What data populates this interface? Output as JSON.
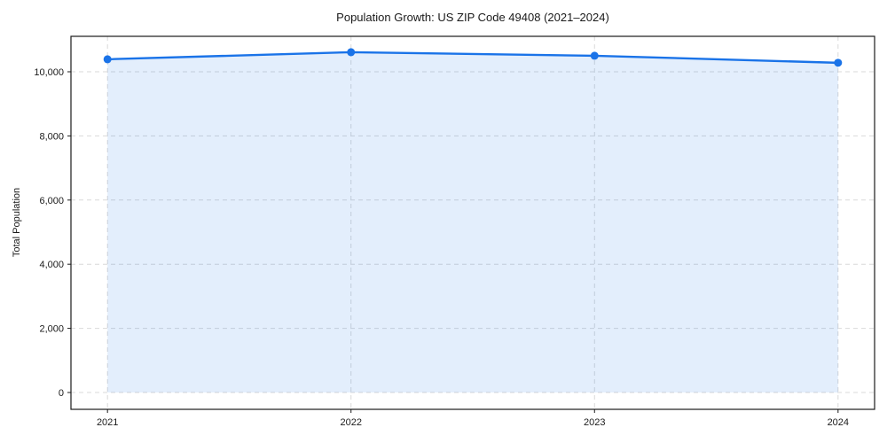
{
  "chart_data": {
    "type": "area",
    "title": "Population Growth: US ZIP Code 49408 (2021–2024)",
    "xlabel": "",
    "ylabel": "Total Population",
    "x": [
      2021,
      2022,
      2023,
      2024
    ],
    "series": [
      {
        "name": "Total Population",
        "values": [
          10390,
          10610,
          10500,
          10280
        ]
      }
    ],
    "xticks": [
      2021,
      2022,
      2023,
      2024
    ],
    "yticks": [
      0,
      2000,
      4000,
      6000,
      8000,
      10000
    ],
    "xlim": [
      2020.85,
      2024.15
    ],
    "ylim": [
      -525,
      11105
    ],
    "fill_baseline": 0,
    "grid": true,
    "legend": false,
    "colors": {
      "line": "#1a73e8",
      "fill": "#1a73e8",
      "fill_opacity": 0.12,
      "grid": "#d9d9d9",
      "spine": "#1a1a1a",
      "tick": "#1a1a1a",
      "text": "#1a1a1a",
      "background": "#ffffff"
    }
  }
}
